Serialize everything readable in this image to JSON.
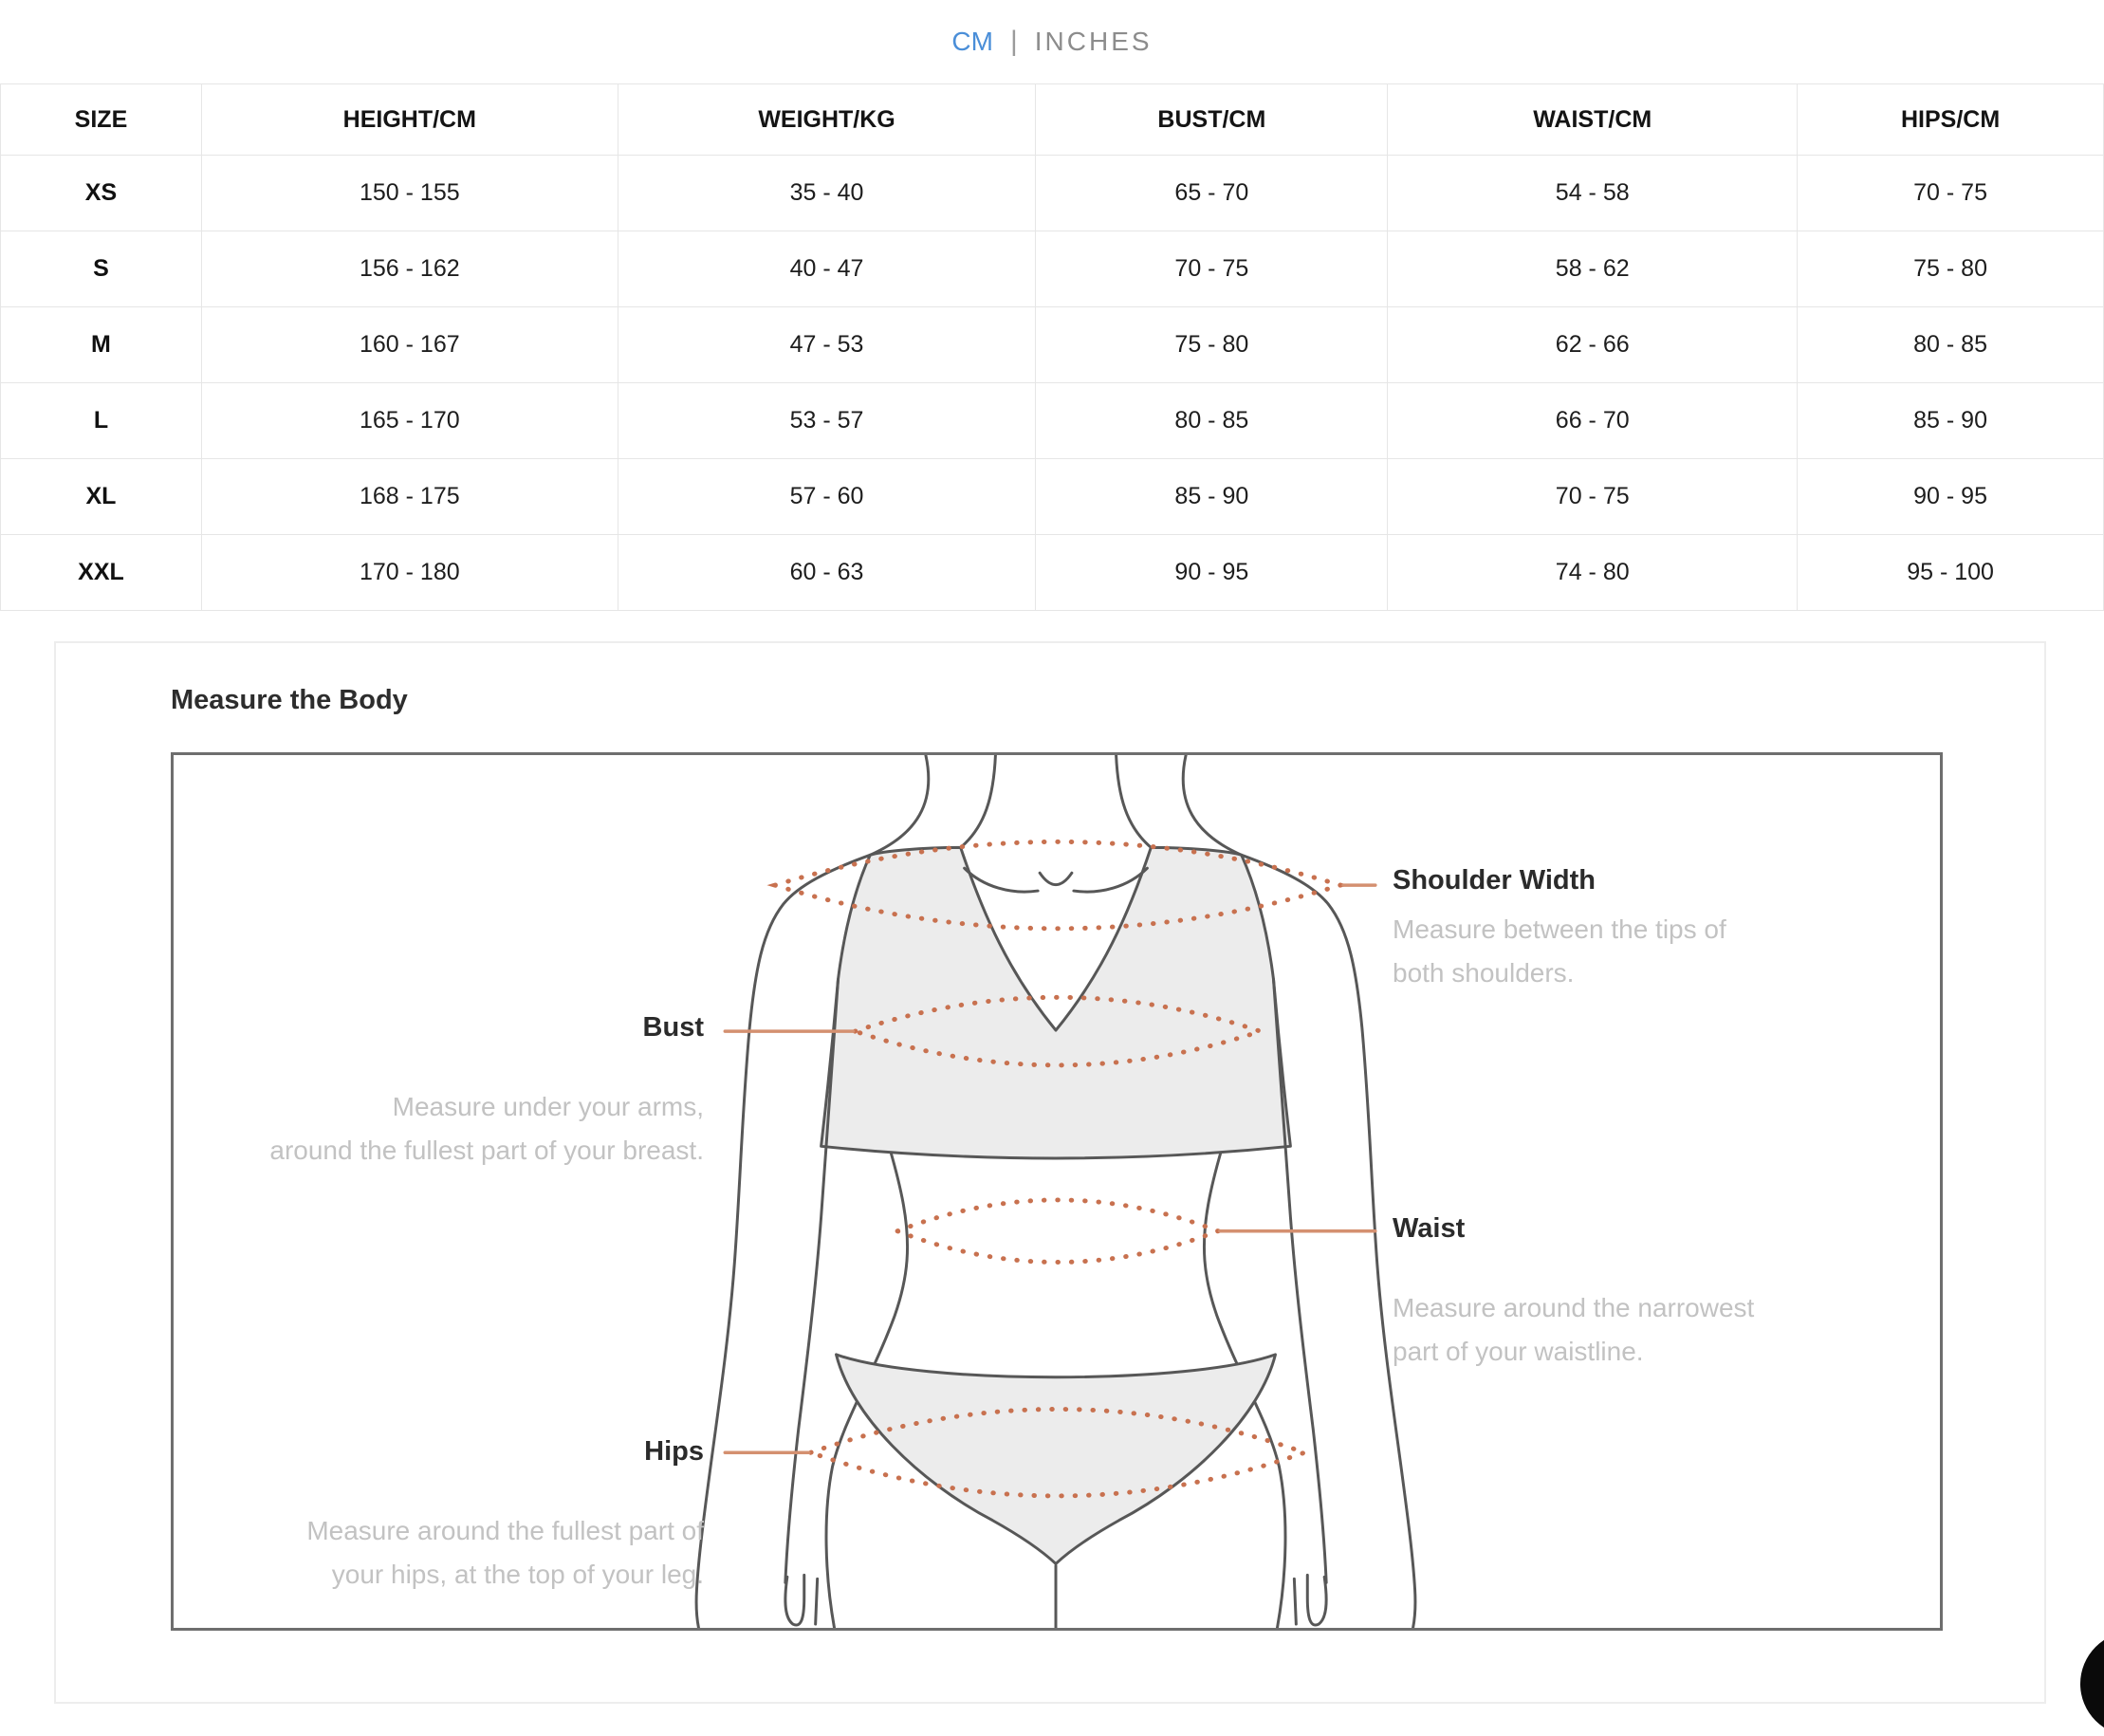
{
  "unit_toggle": {
    "cm": "CM",
    "separator": "|",
    "inches": "INCHES"
  },
  "size_table": {
    "headers": [
      "SIZE",
      "HEIGHT/CM",
      "WEIGHT/KG",
      "BUST/CM",
      "WAIST/CM",
      "HIPS/CM"
    ],
    "rows": [
      [
        "XS",
        "150 - 155",
        "35 - 40",
        "65 - 70",
        "54 - 58",
        "70 - 75"
      ],
      [
        "S",
        "156 - 162",
        "40 - 47",
        "70 - 75",
        "58 - 62",
        "75 - 80"
      ],
      [
        "M",
        "160 - 167",
        "47 - 53",
        "75 - 80",
        "62 - 66",
        "80 - 85"
      ],
      [
        "L",
        "165 - 170",
        "53 - 57",
        "80 - 85",
        "66 - 70",
        "85 - 90"
      ],
      [
        "XL",
        "168 - 175",
        "57 - 60",
        "85 - 90",
        "70 - 75",
        "90 - 95"
      ],
      [
        "XXL",
        "170 - 180",
        "60 - 63",
        "90 - 95",
        "74 - 80",
        "95 - 100"
      ]
    ]
  },
  "measure_section": {
    "title": "Measure the Body",
    "callouts": {
      "shoulder": {
        "label": "Shoulder Width",
        "line1": "Measure between the tips of",
        "line2": "both shoulders."
      },
      "bust": {
        "label": "Bust",
        "line1": "Measure under your arms,",
        "line2": "around the fullest part of your breast."
      },
      "waist": {
        "label": "Waist",
        "line1": "Measure around the narrowest",
        "line2": "part of your waistline."
      },
      "hips": {
        "label": "Hips",
        "line1": "Measure around the fullest part of",
        "line2": "your hips, at the top of your leg."
      }
    }
  },
  "colors": {
    "accent_blue": "#4a8ed8",
    "inactive_gray": "#8c8c8c",
    "table_border": "#e6e6e6",
    "card_border": "#ededed",
    "diagram_border": "#6e6e6e",
    "figure_outline": "#575757",
    "clothing_fill": "#ececec",
    "tape_dots_orange": "#c8714f",
    "callout_line_orange": "#d49070",
    "desc_text_gray": "#c2c2c2",
    "fab_black": "#0a0a0a"
  }
}
